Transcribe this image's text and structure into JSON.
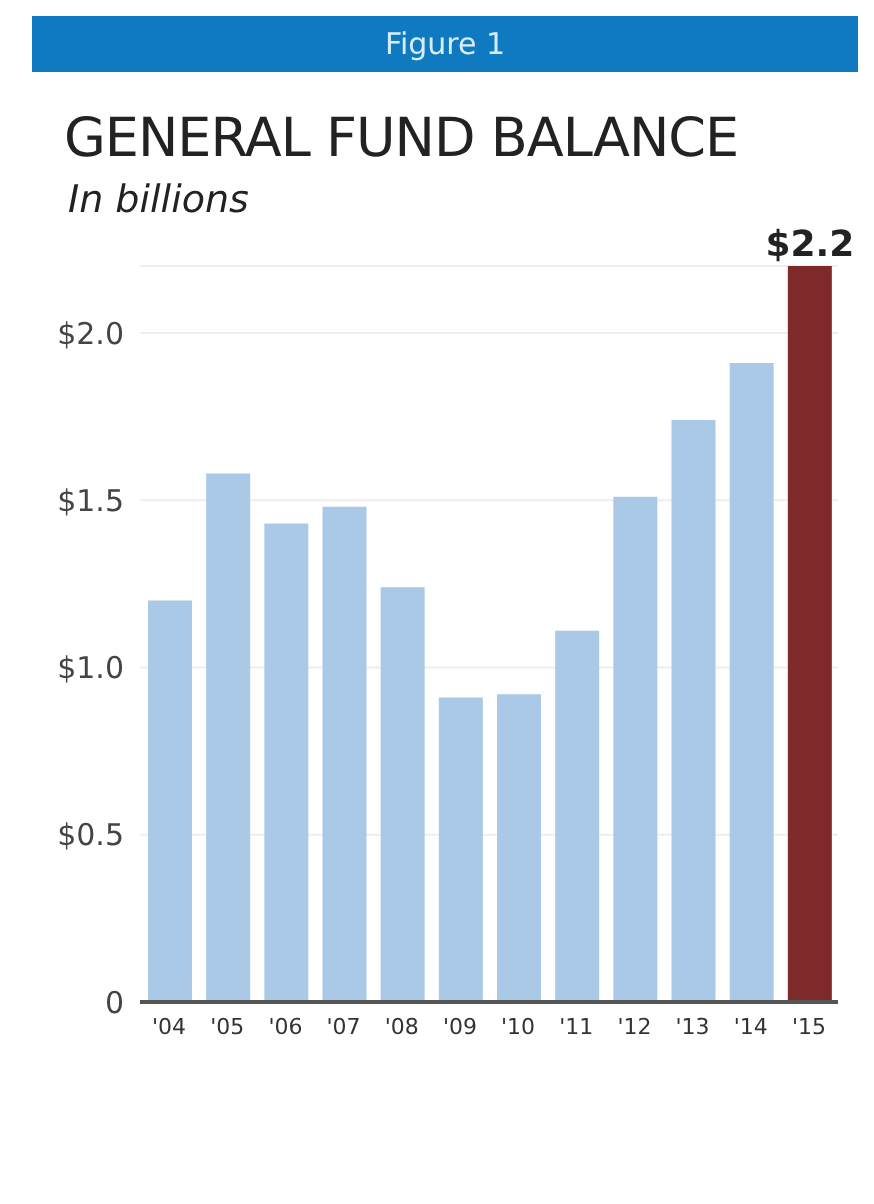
{
  "chart_data": {
    "type": "bar",
    "title": "GENERAL FUND BALANCE",
    "subtitle": "In billions",
    "annotations": [
      "Figure 1"
    ],
    "categories": [
      "'04",
      "'05",
      "'06",
      "'07",
      "'08",
      "'09",
      "'10",
      "'11",
      "'12",
      "'13",
      "'14",
      "'15"
    ],
    "values": [
      1.2,
      1.58,
      1.43,
      1.48,
      1.24,
      0.91,
      0.92,
      1.11,
      1.51,
      1.74,
      1.91,
      2.2
    ],
    "colors": [
      "#a9c9e6",
      "#a9c9e6",
      "#a9c9e6",
      "#a9c9e6",
      "#a9c9e6",
      "#a9c9e6",
      "#a9c9e6",
      "#a9c9e6",
      "#a9c9e6",
      "#a9c9e6",
      "#a9c9e6",
      "#7e2a2a"
    ],
    "value_labels": [
      null,
      null,
      null,
      null,
      null,
      null,
      null,
      null,
      null,
      null,
      null,
      "$2.2"
    ],
    "ylim": [
      0,
      2.2
    ],
    "yticks": [
      {
        "value": 0,
        "label": "0"
      },
      {
        "value": 0.5,
        "label": "$0.5"
      },
      {
        "value": 1,
        "label": "$1.0"
      },
      {
        "value": 1.5,
        "label": "$1.5"
      },
      {
        "value": 2,
        "label": "$2.0"
      }
    ],
    "grid": "y"
  }
}
